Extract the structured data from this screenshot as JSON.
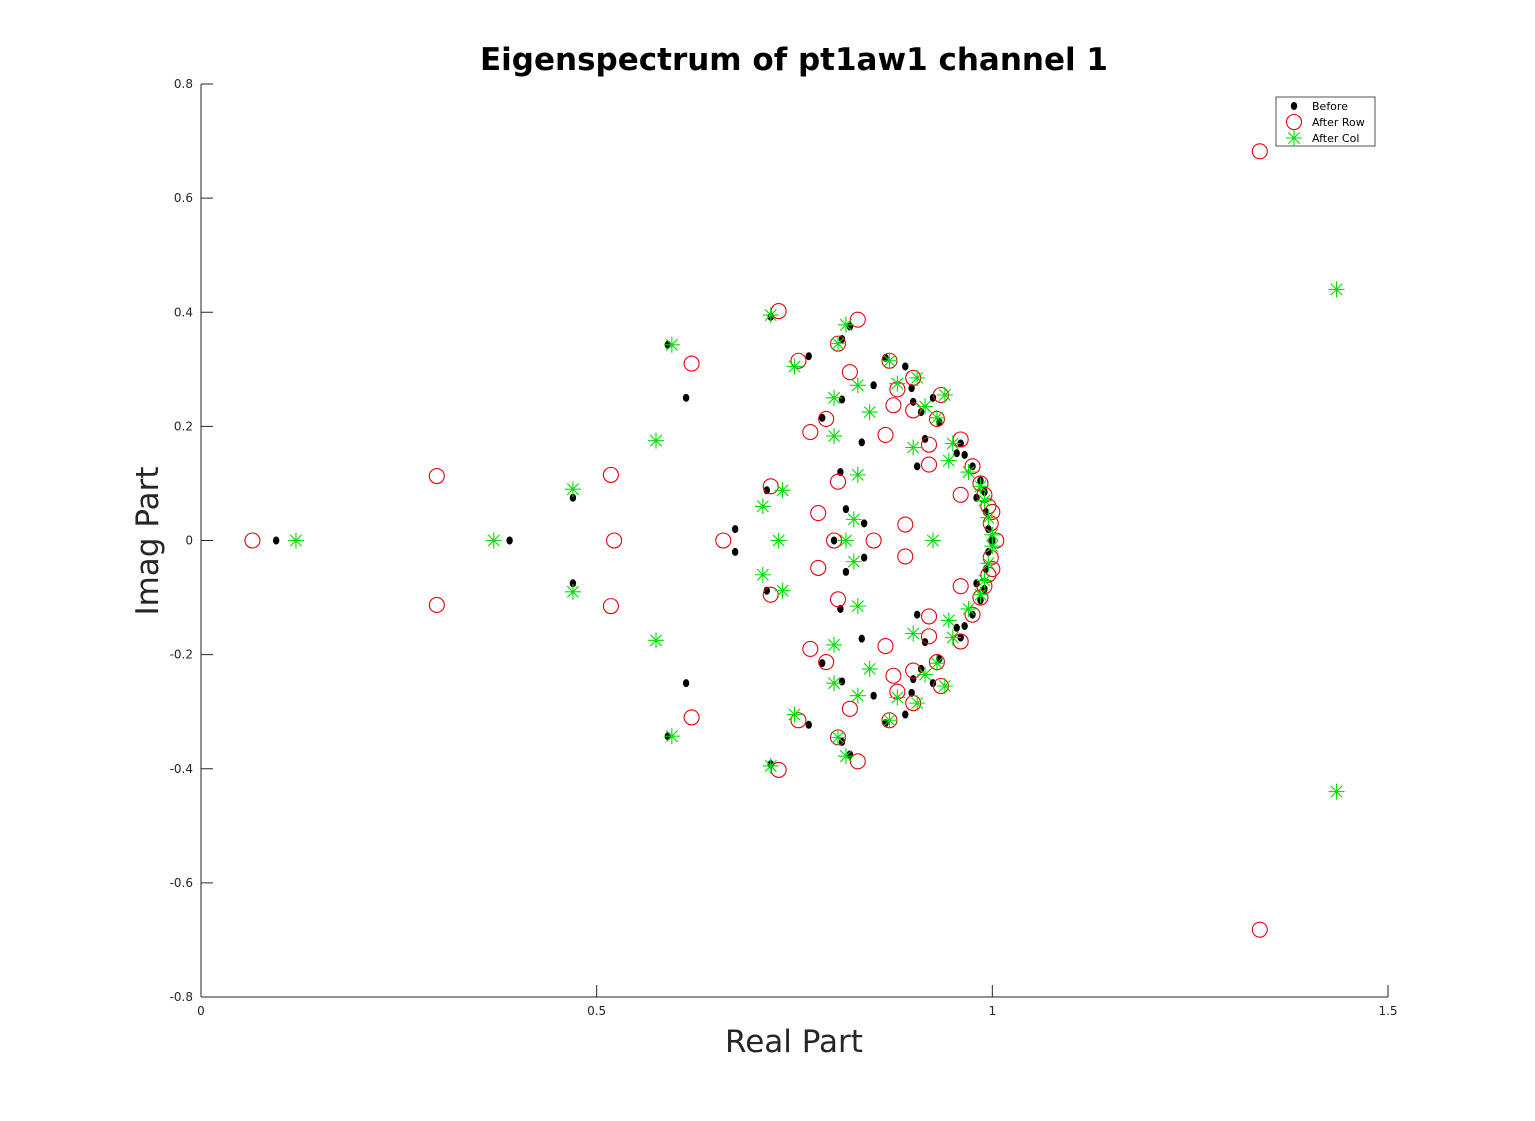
{
  "chart_data": {
    "type": "scatter",
    "title": "Eigenspectrum of pt1aw1 channel 1",
    "xlabel": "Real Part",
    "ylabel": "Imag Part",
    "xlim": [
      0,
      1.5
    ],
    "ylim": [
      -0.8,
      0.8
    ],
    "xticks": [
      "0",
      "0.5",
      "1",
      "1.5"
    ],
    "yticks": [
      "-0.8",
      "-0.6",
      "-0.4",
      "-0.2",
      "0",
      "0.2",
      "0.4",
      "0.6",
      "0.8"
    ],
    "grid": false,
    "legend_position": "top-right",
    "series": [
      {
        "name": "Before",
        "marker": "dot",
        "color": "#000000",
        "points": [
          [
            0.095,
            0
          ],
          [
            0.39,
            0
          ],
          [
            0.47,
            0.075
          ],
          [
            0.47,
            -0.075
          ],
          [
            0.59,
            0.343
          ],
          [
            0.59,
            -0.343
          ],
          [
            0.613,
            0.25
          ],
          [
            0.613,
            -0.25
          ],
          [
            0.675,
            0.02
          ],
          [
            0.675,
            -0.02
          ],
          [
            0.715,
            0.088
          ],
          [
            0.715,
            -0.088
          ],
          [
            0.72,
            0.392
          ],
          [
            0.72,
            -0.392
          ],
          [
            0.768,
            0.323
          ],
          [
            0.768,
            -0.323
          ],
          [
            0.785,
            0.215
          ],
          [
            0.785,
            -0.215
          ],
          [
            0.8,
            0
          ],
          [
            0.81,
            0.353
          ],
          [
            0.81,
            -0.353
          ],
          [
            0.81,
            0.247
          ],
          [
            0.81,
            -0.247
          ],
          [
            0.808,
            0.12
          ],
          [
            0.808,
            -0.12
          ],
          [
            0.815,
            0.055
          ],
          [
            0.815,
            -0.055
          ],
          [
            0.82,
            0.375
          ],
          [
            0.82,
            -0.375
          ],
          [
            0.835,
            0.172
          ],
          [
            0.835,
            -0.172
          ],
          [
            0.838,
            0.03
          ],
          [
            0.838,
            -0.03
          ],
          [
            0.85,
            0.272
          ],
          [
            0.85,
            -0.272
          ],
          [
            0.865,
            0.32
          ],
          [
            0.865,
            -0.32
          ],
          [
            0.89,
            0.305
          ],
          [
            0.89,
            -0.305
          ],
          [
            0.898,
            0.267
          ],
          [
            0.898,
            -0.267
          ],
          [
            0.9,
            0.243
          ],
          [
            0.9,
            -0.243
          ],
          [
            0.905,
            0.13
          ],
          [
            0.905,
            -0.13
          ],
          [
            0.91,
            0.225
          ],
          [
            0.91,
            -0.225
          ],
          [
            0.915,
            0.178
          ],
          [
            0.915,
            -0.178
          ],
          [
            0.925,
            0.25
          ],
          [
            0.925,
            -0.25
          ],
          [
            0.933,
            0.207
          ],
          [
            0.933,
            -0.207
          ],
          [
            0.955,
            0.153
          ],
          [
            0.955,
            -0.153
          ],
          [
            0.96,
            0.17
          ],
          [
            0.96,
            -0.17
          ],
          [
            0.965,
            0.15
          ],
          [
            0.965,
            -0.15
          ],
          [
            0.975,
            0.13
          ],
          [
            0.975,
            -0.13
          ],
          [
            0.98,
            0.075
          ],
          [
            0.98,
            -0.075
          ],
          [
            0.985,
            0.105
          ],
          [
            0.985,
            -0.105
          ],
          [
            0.99,
            0.085
          ],
          [
            0.99,
            -0.085
          ],
          [
            0.992,
            0.05
          ],
          [
            0.992,
            -0.05
          ],
          [
            0.995,
            0.02
          ],
          [
            0.995,
            -0.02
          ],
          [
            1.0,
            0
          ]
        ]
      },
      {
        "name": "After Row",
        "marker": "circle",
        "color": "#e8000b",
        "points": [
          [
            0.065,
            0
          ],
          [
            0.298,
            0.113
          ],
          [
            0.298,
            -0.113
          ],
          [
            0.522,
            0
          ],
          [
            0.518,
            0.115
          ],
          [
            0.518,
            -0.115
          ],
          [
            0.62,
            0.31
          ],
          [
            0.62,
            -0.31
          ],
          [
            0.66,
            0
          ],
          [
            0.72,
            0.095
          ],
          [
            0.72,
            -0.095
          ],
          [
            0.73,
            0.402
          ],
          [
            0.73,
            -0.402
          ],
          [
            0.755,
            0.315
          ],
          [
            0.755,
            -0.315
          ],
          [
            0.77,
            0.19
          ],
          [
            0.77,
            -0.19
          ],
          [
            0.78,
            0.048
          ],
          [
            0.78,
            -0.048
          ],
          [
            0.79,
            0.213
          ],
          [
            0.79,
            -0.213
          ],
          [
            0.8,
            0
          ],
          [
            0.805,
            0.345
          ],
          [
            0.805,
            -0.345
          ],
          [
            0.805,
            0.103
          ],
          [
            0.805,
            -0.103
          ],
          [
            0.82,
            0.295
          ],
          [
            0.82,
            -0.295
          ],
          [
            0.83,
            0.387
          ],
          [
            0.83,
            -0.387
          ],
          [
            0.85,
            0
          ],
          [
            0.865,
            0.185
          ],
          [
            0.865,
            -0.185
          ],
          [
            0.87,
            0.315
          ],
          [
            0.87,
            -0.315
          ],
          [
            0.875,
            0.237
          ],
          [
            0.875,
            -0.237
          ],
          [
            0.88,
            0.265
          ],
          [
            0.88,
            -0.265
          ],
          [
            0.89,
            0.028
          ],
          [
            0.89,
            -0.028
          ],
          [
            0.9,
            0.285
          ],
          [
            0.9,
            -0.285
          ],
          [
            0.9,
            0.228
          ],
          [
            0.9,
            -0.228
          ],
          [
            0.92,
            0.133
          ],
          [
            0.92,
            -0.133
          ],
          [
            0.92,
            0.168
          ],
          [
            0.92,
            -0.168
          ],
          [
            0.93,
            0.213
          ],
          [
            0.93,
            -0.213
          ],
          [
            0.935,
            0.255
          ],
          [
            0.935,
            -0.255
          ],
          [
            0.96,
            0.08
          ],
          [
            0.96,
            -0.08
          ],
          [
            0.96,
            0.177
          ],
          [
            0.96,
            -0.177
          ],
          [
            0.975,
            0.13
          ],
          [
            0.975,
            -0.13
          ],
          [
            0.985,
            0.1
          ],
          [
            0.985,
            -0.1
          ],
          [
            0.99,
            0.08
          ],
          [
            0.99,
            -0.08
          ],
          [
            0.995,
            0.06
          ],
          [
            0.995,
            -0.06
          ],
          [
            0.998,
            0.03
          ],
          [
            0.998,
            -0.03
          ],
          [
            1.0,
            0.05
          ],
          [
            1.0,
            -0.05
          ],
          [
            1.005,
            0
          ],
          [
            1.338,
            0.682
          ],
          [
            1.338,
            -0.682
          ]
        ]
      },
      {
        "name": "After Col",
        "marker": "star",
        "color": "#00dd00",
        "points": [
          [
            0.12,
            0
          ],
          [
            0.37,
            0
          ],
          [
            0.47,
            0.09
          ],
          [
            0.47,
            -0.09
          ],
          [
            0.575,
            0.175
          ],
          [
            0.575,
            -0.175
          ],
          [
            0.595,
            0.343
          ],
          [
            0.595,
            -0.343
          ],
          [
            0.71,
            0.06
          ],
          [
            0.71,
            -0.06
          ],
          [
            0.72,
            0.395
          ],
          [
            0.72,
            -0.395
          ],
          [
            0.73,
            0
          ],
          [
            0.735,
            0.088
          ],
          [
            0.735,
            -0.088
          ],
          [
            0.75,
            0.305
          ],
          [
            0.75,
            -0.305
          ],
          [
            0.8,
            0.25
          ],
          [
            0.8,
            -0.25
          ],
          [
            0.8,
            0.183
          ],
          [
            0.8,
            -0.183
          ],
          [
            0.805,
            0.345
          ],
          [
            0.805,
            -0.345
          ],
          [
            0.815,
            0.378
          ],
          [
            0.815,
            -0.378
          ],
          [
            0.815,
            0
          ],
          [
            0.825,
            0.037
          ],
          [
            0.825,
            -0.037
          ],
          [
            0.83,
            0.272
          ],
          [
            0.83,
            -0.272
          ],
          [
            0.83,
            0.115
          ],
          [
            0.83,
            -0.115
          ],
          [
            0.845,
            0.225
          ],
          [
            0.845,
            -0.225
          ],
          [
            0.87,
            0.315
          ],
          [
            0.87,
            -0.315
          ],
          [
            0.88,
            0.275
          ],
          [
            0.88,
            -0.275
          ],
          [
            0.9,
            0.163
          ],
          [
            0.9,
            -0.163
          ],
          [
            0.905,
            0.285
          ],
          [
            0.905,
            -0.285
          ],
          [
            0.915,
            0.235
          ],
          [
            0.915,
            -0.235
          ],
          [
            0.925,
            0
          ],
          [
            0.93,
            0.215
          ],
          [
            0.93,
            -0.215
          ],
          [
            0.94,
            0.255
          ],
          [
            0.94,
            -0.255
          ],
          [
            0.945,
            0.14
          ],
          [
            0.945,
            -0.14
          ],
          [
            0.95,
            0.17
          ],
          [
            0.95,
            -0.17
          ],
          [
            0.97,
            0.12
          ],
          [
            0.97,
            -0.12
          ],
          [
            0.985,
            0.095
          ],
          [
            0.985,
            -0.095
          ],
          [
            0.99,
            0.07
          ],
          [
            0.99,
            -0.07
          ],
          [
            0.995,
            0.04
          ],
          [
            0.995,
            -0.04
          ],
          [
            1.0,
            0.01
          ],
          [
            1.0,
            -0.01
          ],
          [
            1.435,
            0.44
          ],
          [
            1.435,
            -0.44
          ]
        ]
      }
    ]
  }
}
